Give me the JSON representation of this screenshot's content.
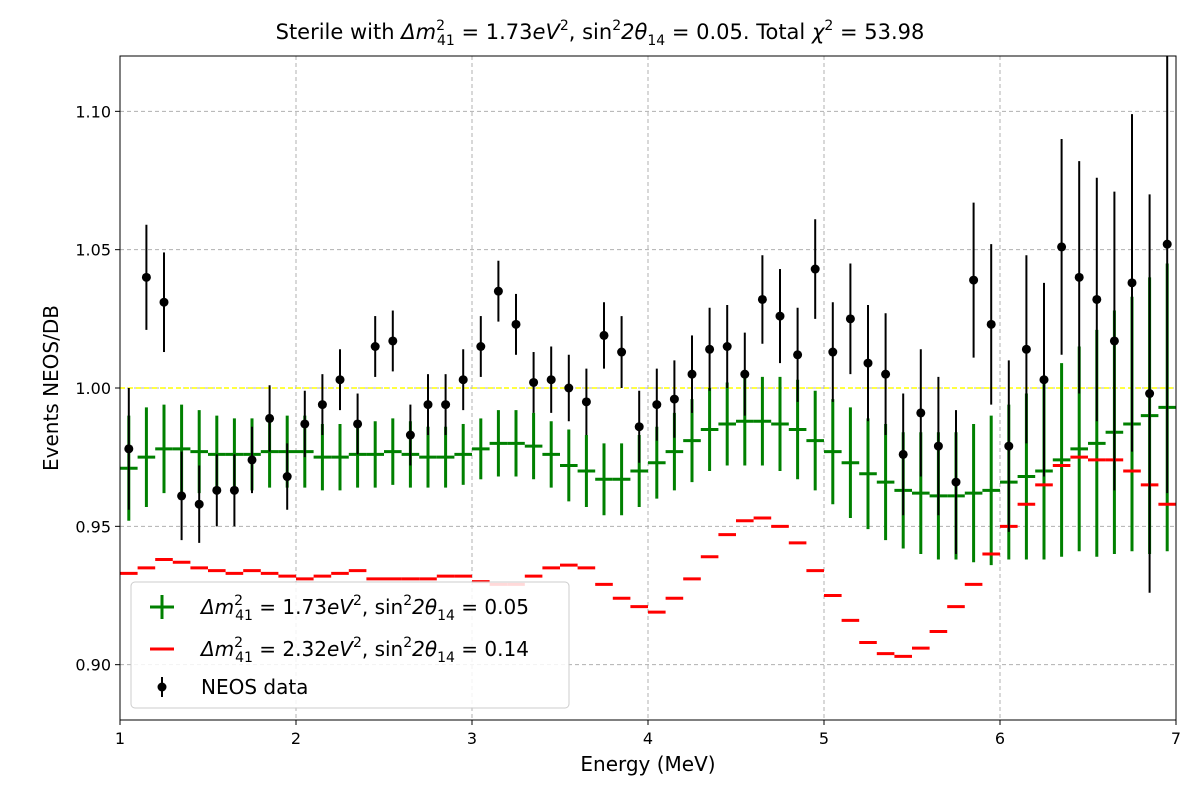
{
  "chart_data": {
    "type": "scatter",
    "title": "Sterile with Δm²₄₁ = 1.73eV², sin²2θ₁₄ = 0.05. Total χ² = 53.98",
    "title_parts": {
      "prefix": "Sterile with ",
      "dm_label": "Δm",
      "dm_sub": "41",
      "dm_sup": "2",
      "dm_value": " = 1.73",
      "dm_unit": "eV",
      "dm_unit_sup": "2",
      "sin_label": ", sin",
      "sin_sup": "2",
      "sin_arg": "2θ",
      "sin_sub": "14",
      "sin_value": " = 0.05. Total ",
      "chi_label": "χ",
      "chi_sup": "2",
      "chi_value": " = 53.98"
    },
    "xlabel": "Energy (MeV)",
    "ylabel": "Events NEOS/DB",
    "xlim": [
      1,
      7
    ],
    "ylim": [
      0.88,
      1.12
    ],
    "xticks": [
      1,
      2,
      3,
      4,
      5,
      6,
      7
    ],
    "xtick_labels": [
      "1",
      "2",
      "3",
      "4",
      "5",
      "6",
      "7"
    ],
    "yticks": [
      0.9,
      0.95,
      1.0,
      1.05,
      1.1
    ],
    "ytick_labels": [
      "0.90",
      "0.95",
      "1.00",
      "1.05",
      "1.10"
    ],
    "grid": true,
    "legend_position": "lower-left",
    "reference_line": {
      "y": 1.0,
      "color": "#ffff00",
      "style": "dashed"
    },
    "bin_half_width": 0.05,
    "x": [
      1.05,
      1.15,
      1.25,
      1.35,
      1.45,
      1.55,
      1.65,
      1.75,
      1.85,
      1.95,
      2.05,
      2.15,
      2.25,
      2.35,
      2.45,
      2.55,
      2.65,
      2.75,
      2.85,
      2.95,
      3.05,
      3.15,
      3.25,
      3.35,
      3.45,
      3.55,
      3.65,
      3.75,
      3.85,
      3.95,
      4.05,
      4.15,
      4.25,
      4.35,
      4.45,
      4.55,
      4.65,
      4.75,
      4.85,
      4.95,
      5.05,
      5.15,
      5.25,
      5.35,
      5.45,
      5.55,
      5.65,
      5.75,
      5.85,
      5.95,
      6.05,
      6.15,
      6.25,
      6.35,
      6.45,
      6.55,
      6.65,
      6.75,
      6.85,
      6.95
    ],
    "series": [
      {
        "name": "Δm²₄₁ = 1.73eV², sin²2θ₁₄ = 0.05",
        "label_parts": {
          "dm_value": " = 1.73",
          "sin_value": " = 0.05"
        },
        "color": "#008000",
        "marker": "plus",
        "values": [
          0.971,
          0.975,
          0.978,
          0.978,
          0.977,
          0.976,
          0.976,
          0.976,
          0.977,
          0.977,
          0.977,
          0.975,
          0.975,
          0.976,
          0.976,
          0.977,
          0.976,
          0.975,
          0.975,
          0.976,
          0.978,
          0.98,
          0.98,
          0.979,
          0.976,
          0.972,
          0.97,
          0.967,
          0.967,
          0.97,
          0.973,
          0.977,
          0.981,
          0.985,
          0.987,
          0.988,
          0.988,
          0.987,
          0.985,
          0.981,
          0.977,
          0.973,
          0.969,
          0.966,
          0.963,
          0.962,
          0.961,
          0.961,
          0.962,
          0.963,
          0.966,
          0.968,
          0.97,
          0.974,
          0.978,
          0.98,
          0.984,
          0.987,
          0.99,
          0.993
        ],
        "errors": [
          0.019,
          0.018,
          0.016,
          0.016,
          0.015,
          0.014,
          0.013,
          0.013,
          0.013,
          0.013,
          0.013,
          0.012,
          0.012,
          0.012,
          0.012,
          0.012,
          0.012,
          0.011,
          0.011,
          0.011,
          0.011,
          0.012,
          0.012,
          0.012,
          0.012,
          0.013,
          0.013,
          0.013,
          0.013,
          0.013,
          0.013,
          0.014,
          0.015,
          0.015,
          0.015,
          0.016,
          0.016,
          0.017,
          0.018,
          0.018,
          0.019,
          0.02,
          0.02,
          0.021,
          0.021,
          0.022,
          0.023,
          0.023,
          0.025,
          0.027,
          0.028,
          0.03,
          0.032,
          0.035,
          0.037,
          0.041,
          0.044,
          0.046,
          0.05,
          0.052
        ]
      },
      {
        "name": "Δm²₄₁ = 2.32eV², sin²2θ₁₄ = 0.14",
        "label_parts": {
          "dm_value": " = 2.32",
          "sin_value": " = 0.14"
        },
        "color": "#ff0000",
        "marker": "hline",
        "values": [
          0.933,
          0.935,
          0.938,
          0.937,
          0.935,
          0.934,
          0.933,
          0.934,
          0.933,
          0.932,
          0.931,
          0.932,
          0.933,
          0.934,
          0.931,
          0.931,
          0.931,
          0.931,
          0.932,
          0.932,
          0.93,
          0.929,
          0.929,
          0.932,
          0.935,
          0.936,
          0.935,
          0.929,
          0.924,
          0.921,
          0.919,
          0.924,
          0.931,
          0.939,
          0.947,
          0.952,
          0.953,
          0.95,
          0.944,
          0.934,
          0.925,
          0.916,
          0.908,
          0.904,
          0.903,
          0.906,
          0.912,
          0.921,
          0.929,
          0.94,
          0.95,
          0.958,
          0.965,
          0.972,
          0.975,
          0.974,
          0.974,
          0.97,
          0.965,
          0.958
        ]
      },
      {
        "name": "NEOS data",
        "color": "#000000",
        "marker": "circle",
        "values": [
          0.978,
          1.04,
          1.031,
          0.961,
          0.958,
          0.963,
          0.963,
          0.974,
          0.989,
          0.968,
          0.987,
          0.994,
          1.003,
          0.987,
          1.015,
          1.017,
          0.983,
          0.994,
          0.994,
          1.003,
          1.015,
          1.035,
          1.023,
          1.002,
          1.003,
          1.0,
          0.995,
          1.019,
          1.013,
          0.986,
          0.994,
          0.996,
          1.005,
          1.014,
          1.015,
          1.005,
          1.032,
          1.026,
          1.012,
          1.043,
          1.013,
          1.025,
          1.009,
          1.005,
          0.976,
          0.991,
          0.979,
          0.966,
          1.039,
          1.023,
          0.979,
          1.014,
          1.003,
          1.051,
          1.04,
          1.032,
          1.017,
          1.038,
          0.998,
          1.052
        ],
        "errors": [
          0.022,
          0.019,
          0.018,
          0.016,
          0.014,
          0.013,
          0.013,
          0.012,
          0.012,
          0.012,
          0.012,
          0.011,
          0.011,
          0.011,
          0.011,
          0.011,
          0.011,
          0.011,
          0.011,
          0.011,
          0.011,
          0.011,
          0.011,
          0.011,
          0.012,
          0.012,
          0.012,
          0.012,
          0.013,
          0.013,
          0.013,
          0.014,
          0.014,
          0.015,
          0.015,
          0.015,
          0.016,
          0.017,
          0.017,
          0.018,
          0.018,
          0.02,
          0.021,
          0.022,
          0.022,
          0.023,
          0.025,
          0.026,
          0.028,
          0.029,
          0.031,
          0.034,
          0.035,
          0.039,
          0.042,
          0.044,
          0.054,
          0.061,
          0.072,
          0.09
        ]
      }
    ],
    "legend": [
      {
        "marker": "plus",
        "color": "#008000",
        "label_dm_value": " = 1.73",
        "label_sin_value": " = 0.05"
      },
      {
        "marker": "hline",
        "color": "#ff0000",
        "label_dm_value": " = 2.32",
        "label_sin_value": " = 0.14"
      },
      {
        "marker": "circle",
        "color": "#000000",
        "label_text": "NEOS data"
      }
    ]
  }
}
